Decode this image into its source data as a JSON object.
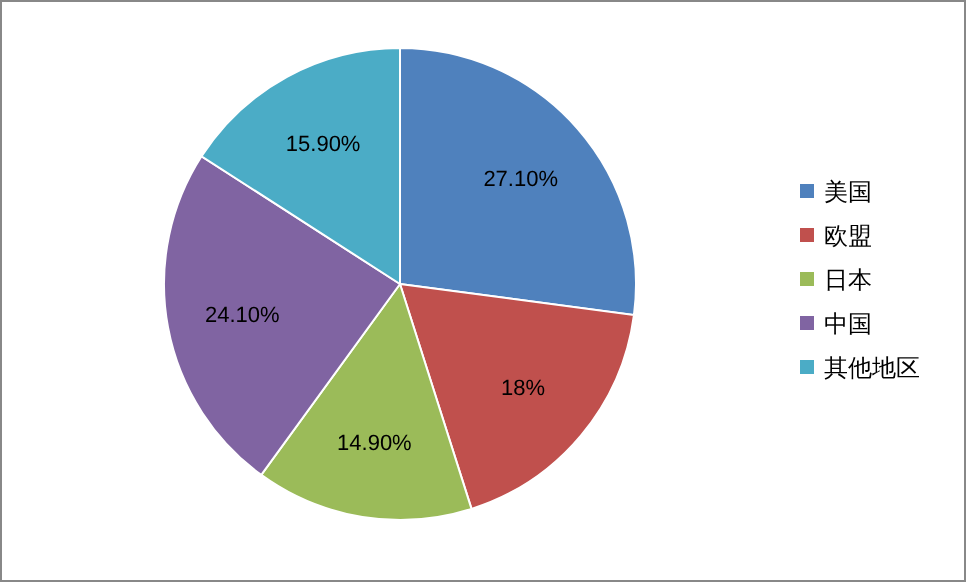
{
  "chart_data": {
    "type": "pie",
    "categories": [
      "美国",
      "欧盟",
      "日本",
      "中国",
      "其他地区"
    ],
    "values": [
      27.1,
      18,
      14.9,
      24.1,
      15.9
    ],
    "value_labels": [
      "27.10%",
      "18%",
      "14.90%",
      "24.10%",
      "15.90%"
    ],
    "colors": [
      "#4f81bd",
      "#c0504d",
      "#9bbb59",
      "#8064a2",
      "#4bacc6"
    ],
    "legend": "right"
  }
}
